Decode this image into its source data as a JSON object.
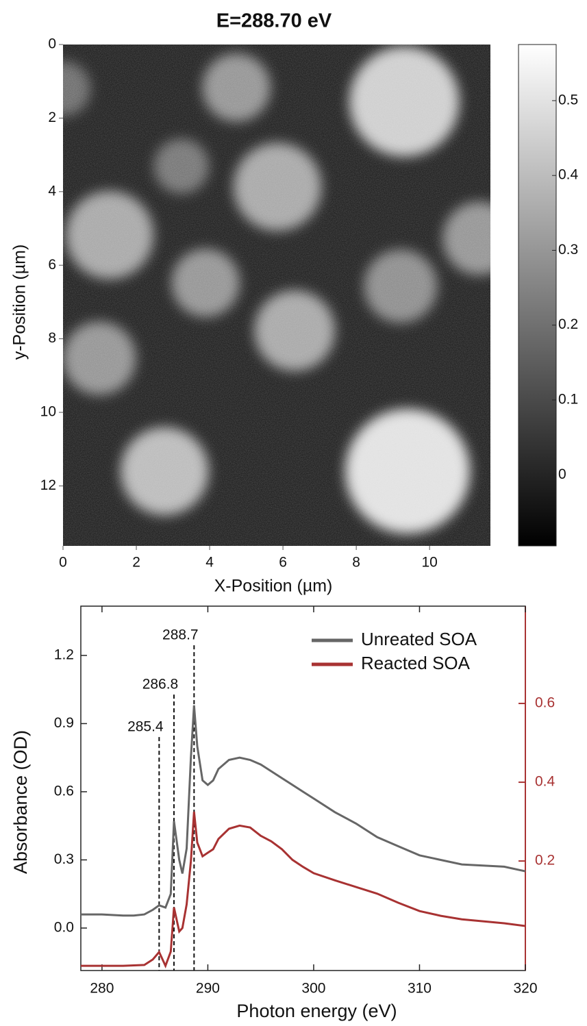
{
  "chart_data": [
    {
      "type": "image",
      "title": "E=288.70 eV",
      "xlabel": "X-Position (µm)",
      "ylabel": "y-Position (µm)",
      "xlim": [
        0,
        11.66
      ],
      "ylim": [
        0,
        13.63
      ],
      "y_reversed": true,
      "xticks": [
        0,
        2,
        4,
        6,
        8,
        10
      ],
      "yticks": [
        0,
        2,
        4,
        6,
        8,
        10,
        12
      ],
      "clim": [
        -0.095,
        0.575
      ],
      "cticks": [
        0,
        0.1,
        0.2,
        0.3,
        0.4,
        0.5
      ],
      "colormap": "gray",
      "background": 0,
      "blobs": [
        {
          "x": 4.73,
          "y": 1.17,
          "r": 0.93,
          "value": 0.3
        },
        {
          "x": 9.31,
          "y": 1.55,
          "r": 1.5,
          "value": 0.45
        },
        {
          "x": 3.23,
          "y": 3.31,
          "r": 0.75,
          "value": 0.22
        },
        {
          "x": 5.85,
          "y": 3.87,
          "r": 1.2,
          "value": 0.35
        },
        {
          "x": 1.27,
          "y": 5.18,
          "r": 1.2,
          "value": 0.35
        },
        {
          "x": 11.36,
          "y": 5.27,
          "r": 1.0,
          "value": 0.3
        },
        {
          "x": 3.89,
          "y": 6.48,
          "r": 0.93,
          "value": 0.3
        },
        {
          "x": 9.21,
          "y": 6.57,
          "r": 1.0,
          "value": 0.28
        },
        {
          "x": 6.32,
          "y": 7.78,
          "r": 1.1,
          "value": 0.35
        },
        {
          "x": 0.99,
          "y": 8.53,
          "r": 1.0,
          "value": 0.3
        },
        {
          "x": 2.77,
          "y": 11.6,
          "r": 1.2,
          "value": 0.4
        },
        {
          "x": 9.4,
          "y": 11.6,
          "r": 1.7,
          "value": 0.5
        },
        {
          "x": 0,
          "y": 1.2,
          "r": 0.75,
          "value": 0.2
        }
      ]
    },
    {
      "type": "line",
      "xlabel": "Photon energy (eV)",
      "ylabel": "Absorbance (OD)",
      "xlim": [
        278,
        320
      ],
      "ylim": [
        -0.187,
        1.417
      ],
      "y2lim": [
        -0.078,
        0.847
      ],
      "xticks": [
        280,
        290,
        300,
        310,
        320
      ],
      "yticks": [
        {
          "value": 0,
          "label": "0.0"
        },
        0.3,
        0.6,
        0.9,
        1.2
      ],
      "y2ticks": [
        0.2,
        0.4,
        0.6
      ],
      "y2color": "#a83232",
      "legend": "top-right",
      "x": [
        278,
        280,
        282,
        283,
        284,
        284.8,
        285.4,
        286,
        286.5,
        286.8,
        287.3,
        287.6,
        288,
        288.4,
        288.7,
        289,
        289.5,
        290,
        290.5,
        291,
        292,
        293,
        294,
        295,
        296,
        297,
        298,
        299,
        300,
        302,
        304,
        306,
        308,
        310,
        312,
        314,
        316,
        318,
        320
      ],
      "series": [
        {
          "name": "Unreated SOA",
          "color": "#666666",
          "values": [
            0.06,
            0.06,
            0.055,
            0.055,
            0.06,
            0.08,
            0.1,
            0.09,
            0.15,
            0.47,
            0.3,
            0.24,
            0.35,
            0.75,
            0.98,
            0.8,
            0.65,
            0.63,
            0.65,
            0.7,
            0.74,
            0.75,
            0.74,
            0.72,
            0.69,
            0.66,
            0.63,
            0.6,
            0.57,
            0.51,
            0.46,
            0.4,
            0.36,
            0.32,
            0.3,
            0.28,
            0.275,
            0.27,
            0.25
          ]
        },
        {
          "name": "Reacted SOA",
          "color": "#a83232",
          "axis": "y2",
          "values": [
            -0.066,
            -0.066,
            -0.066,
            -0.065,
            -0.064,
            -0.05,
            -0.031,
            -0.066,
            -0.03,
            0.082,
            0.021,
            0.03,
            0.09,
            0.2,
            0.325,
            0.247,
            0.212,
            0.221,
            0.23,
            0.256,
            0.282,
            0.29,
            0.285,
            0.264,
            0.25,
            0.23,
            0.203,
            0.185,
            0.169,
            0.151,
            0.134,
            0.117,
            0.094,
            0.073,
            0.061,
            0.052,
            0.047,
            0.042,
            0.035
          ]
        }
      ],
      "annotations": [
        {
          "x": 285.4,
          "y": 0.883
        },
        {
          "x": 286.8,
          "y": 1.07
        },
        {
          "x": 288.7,
          "y": 1.287
        }
      ]
    }
  ]
}
